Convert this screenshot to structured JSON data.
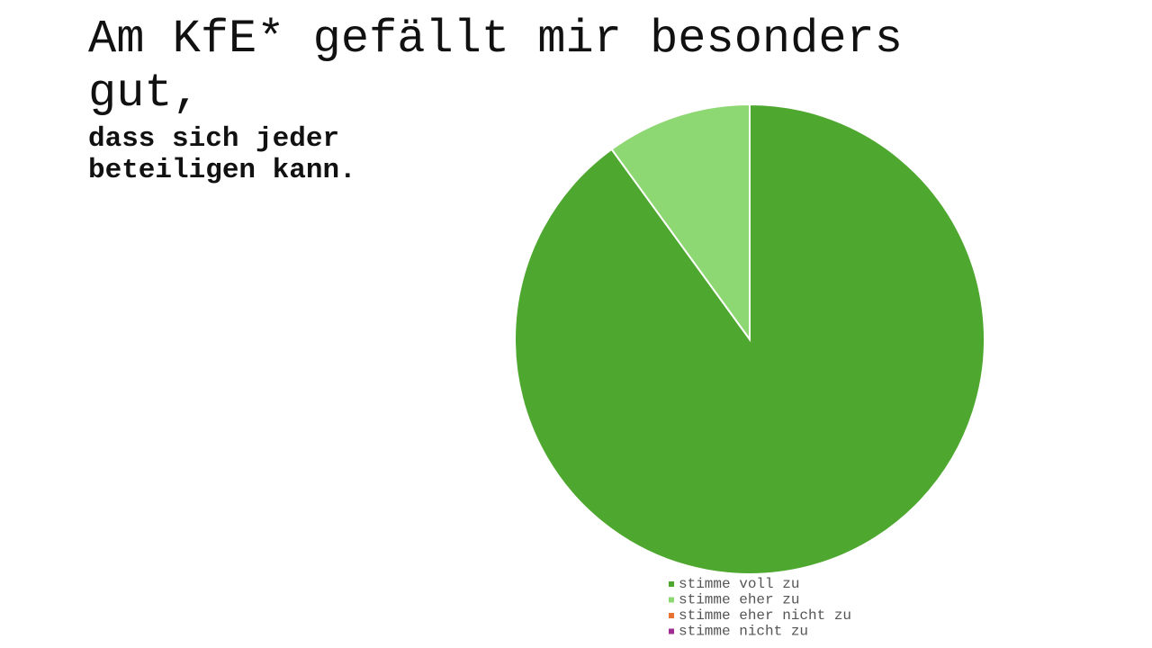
{
  "chart_data": {
    "type": "pie",
    "title": "Am KfE* gefällt mir besonders gut,",
    "subtitle": "dass sich jeder beteiligen kann.",
    "categories": [
      "stimme voll zu",
      "stimme eher zu",
      "stimme eher nicht zu",
      "stimme nicht zu"
    ],
    "values": [
      90,
      10,
      0,
      0
    ],
    "colors": [
      "#4ea72e",
      "#8ed873",
      "#e97132",
      "#a02b93"
    ]
  }
}
